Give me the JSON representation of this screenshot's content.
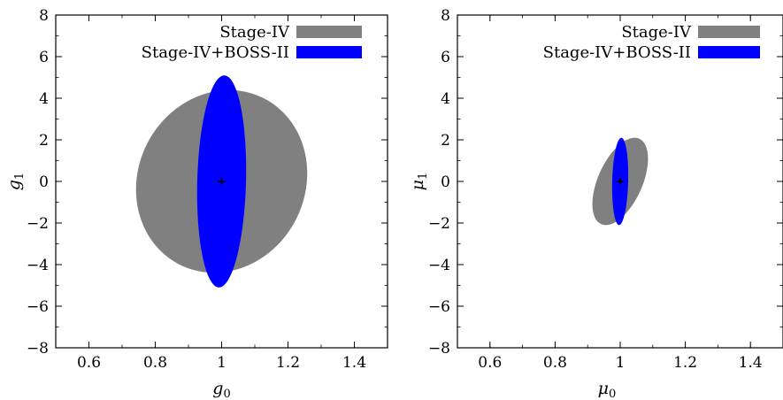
{
  "chart_data": [
    {
      "type": "scatter",
      "subtype": "confidence-ellipse",
      "xlabel_main": "g",
      "xlabel_sub": "0",
      "ylabel_main": "g",
      "ylabel_sub": "1",
      "xlim": [
        0.5,
        1.5
      ],
      "ylim": [
        -8,
        8
      ],
      "xticks": [
        0.6,
        0.8,
        1,
        1.2,
        1.4
      ],
      "xtick_labels": [
        "0.6",
        "0.8",
        "1",
        "1.2",
        "1.4"
      ],
      "yticks": [
        -8,
        -6,
        -4,
        -2,
        0,
        2,
        4,
        6,
        8
      ],
      "ytick_labels": [
        "−8",
        "−6",
        "−4",
        "−2",
        "0",
        "2",
        "4",
        "6",
        "8"
      ],
      "fiducial": {
        "x": 1,
        "y": 0
      },
      "legend_position": "top-right",
      "series": [
        {
          "name": "Stage-IV",
          "color": "#808080",
          "ellipse": {
            "center": [
              1.0,
              0.0
            ],
            "x_range": [
              0.8,
              1.33
            ],
            "y_range": [
              -5.4,
              5.4
            ],
            "correlation": "negative"
          }
        },
        {
          "name": "Stage-IV+BOSS-II",
          "color": "#0000ff",
          "ellipse": {
            "center": [
              1.0,
              0.0
            ],
            "x_range": [
              0.92,
              1.07
            ],
            "y_range": [
              -5.1,
              5.1
            ],
            "correlation": "slightly negative"
          }
        }
      ]
    },
    {
      "type": "scatter",
      "subtype": "confidence-ellipse",
      "xlabel_main": "μ",
      "xlabel_sub": "0",
      "ylabel_main": "μ",
      "ylabel_sub": "1",
      "xlim": [
        0.5,
        1.5
      ],
      "ylim": [
        -8,
        8
      ],
      "xticks": [
        0.6,
        0.8,
        1,
        1.2,
        1.4
      ],
      "xtick_labels": [
        "0.6",
        "0.8",
        "1",
        "1.2",
        "1.4"
      ],
      "yticks": [
        -8,
        -6,
        -4,
        -2,
        0,
        2,
        4,
        6,
        8
      ],
      "ytick_labels": [
        "−8",
        "−6",
        "−4",
        "−2",
        "0",
        "2",
        "4",
        "6",
        "8"
      ],
      "fiducial": {
        "x": 1,
        "y": 0
      },
      "legend_position": "top-right",
      "series": [
        {
          "name": "Stage-IV",
          "color": "#808080",
          "ellipse": {
            "center": [
              1.0,
              0.0
            ],
            "x_range": [
              0.89,
              1.11
            ],
            "y_range": [
              -2.5,
              2.5
            ],
            "correlation": "negative"
          }
        },
        {
          "name": "Stage-IV+BOSS-II",
          "color": "#0000ff",
          "ellipse": {
            "center": [
              1.0,
              0.0
            ],
            "x_range": [
              0.975,
              1.025
            ],
            "y_range": [
              -2.1,
              2.1
            ],
            "correlation": "slightly negative"
          }
        }
      ]
    }
  ]
}
